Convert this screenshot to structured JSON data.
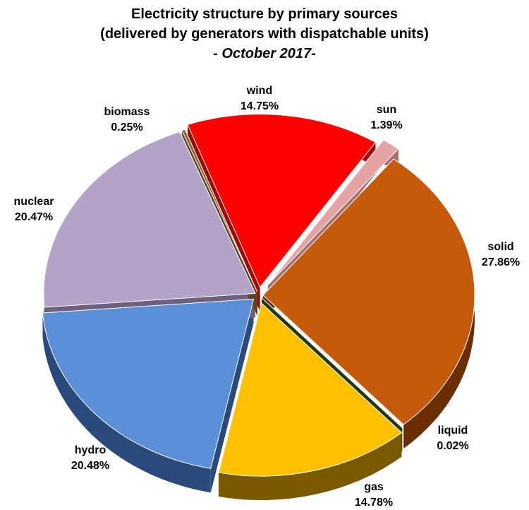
{
  "chart_data": {
    "type": "pie",
    "title": "Electricity structure by primary sources",
    "subtitle": "(delivered by generators with dispatchable units)",
    "period": "- October 2017-",
    "slices": [
      {
        "label": "wind",
        "value_label": "14.75%",
        "value": 14.75,
        "color": "#ff0000",
        "side": "#a50000"
      },
      {
        "label": "sun",
        "value_label": "1.39%",
        "value": 1.39,
        "color": "#e6a3a3",
        "side": "#a86f6f"
      },
      {
        "label": "solid",
        "value_label": "27.86%",
        "value": 27.86,
        "color": "#c55a0c",
        "side": "#6b2e03"
      },
      {
        "label": "liquid",
        "value_label": "0.02%",
        "value": 0.02,
        "color": "#3a5a1a",
        "side": "#24380f"
      },
      {
        "label": "gas",
        "value_label": "14.78%",
        "value": 14.78,
        "color": "#ffc000",
        "side": "#7a5a00"
      },
      {
        "label": "hydro",
        "value_label": "20.48%",
        "value": 20.48,
        "color": "#5b8fd8",
        "side": "#2a4a7c"
      },
      {
        "label": "nuclear",
        "value_label": "20.47%",
        "value": 20.47,
        "color": "#b4a3c8",
        "side": "#6e6180"
      },
      {
        "label": "biomass",
        "value_label": "0.25%",
        "value": 0.25,
        "color": "#8a6a3a",
        "side": "#5a4421"
      }
    ]
  }
}
